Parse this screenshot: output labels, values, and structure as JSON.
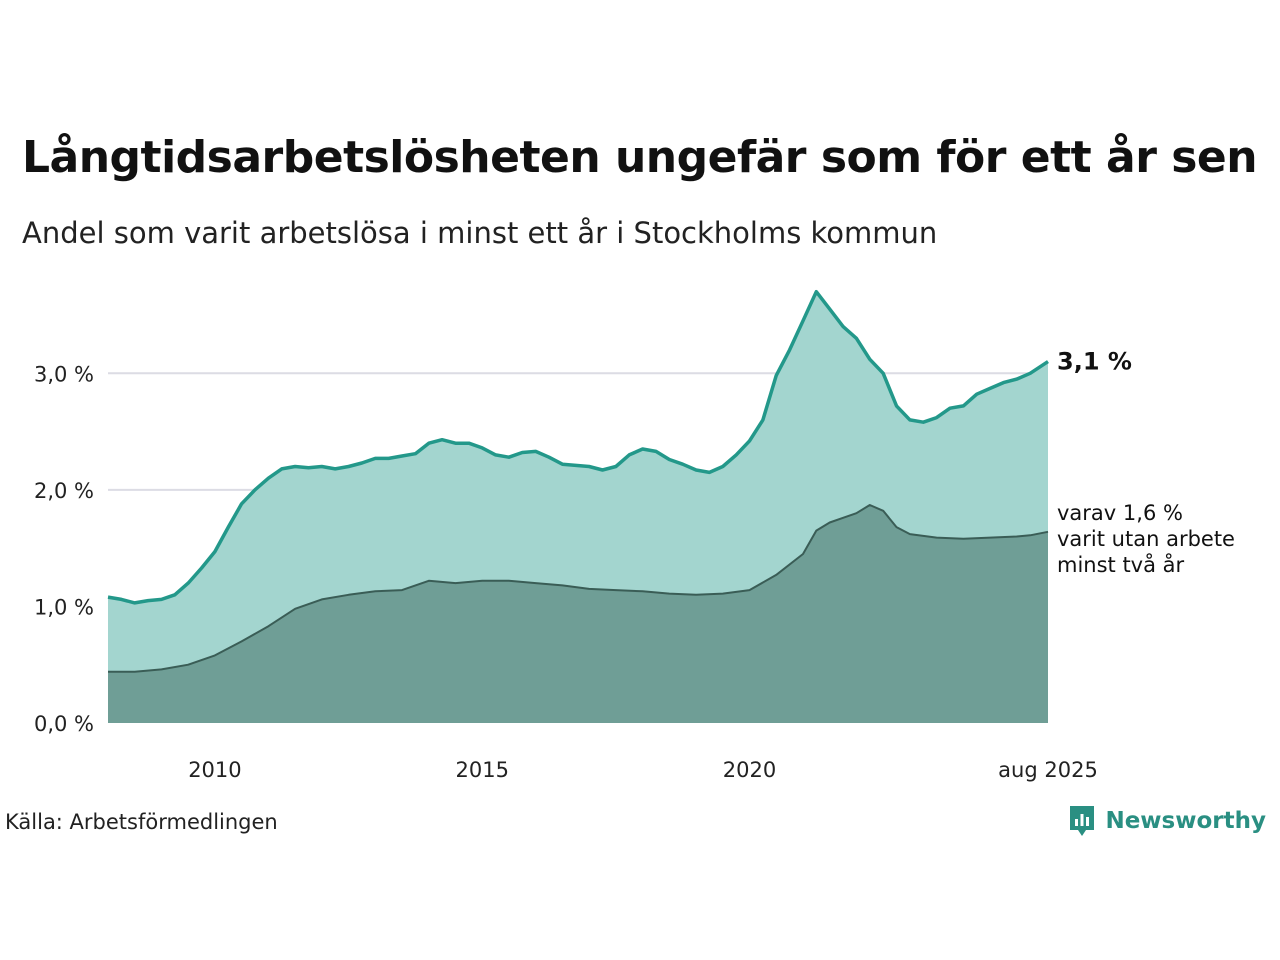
{
  "header": {
    "title": "Långtidsarbetslösheten ungefär som för ett år sen",
    "subtitle": "Andel som varit arbetslösa i minst ett år i Stockholms kommun"
  },
  "footer": {
    "source": "Källa: Arbetsförmedlingen",
    "brand": "Newsworthy"
  },
  "colors": {
    "total_line": "#23988a",
    "total_area": "#a3d5cf",
    "sub_line": "#3a5d56",
    "sub_area": "#6f9e96",
    "grid": "#dcdce4",
    "brand": "#2a8f82"
  },
  "chart_data": {
    "type": "area",
    "title": "",
    "xlabel": "",
    "ylabel": "",
    "xlim": [
      "2008-01",
      "2025-08"
    ],
    "ylim": [
      0,
      3.8
    ],
    "y_ticks": [
      0,
      1,
      2,
      3
    ],
    "y_tick_labels": [
      "0,0 %",
      "1,0 %",
      "2,0 %",
      "3,0 %"
    ],
    "x_ticks": [
      "2010-01",
      "2015-01",
      "2020-01",
      "2025-08"
    ],
    "x_tick_labels": [
      "2010",
      "2015",
      "2020",
      "aug 2025"
    ],
    "grid": true,
    "legend": "none",
    "series": [
      {
        "id": "total",
        "x": [
          "2008-01",
          "2008-04",
          "2008-07",
          "2008-10",
          "2009-01",
          "2009-04",
          "2009-07",
          "2009-10",
          "2010-01",
          "2010-04",
          "2010-07",
          "2010-10",
          "2011-01",
          "2011-04",
          "2011-07",
          "2011-10",
          "2012-01",
          "2012-04",
          "2012-07",
          "2012-10",
          "2013-01",
          "2013-04",
          "2013-07",
          "2013-10",
          "2014-01",
          "2014-04",
          "2014-07",
          "2014-10",
          "2015-01",
          "2015-04",
          "2015-07",
          "2015-10",
          "2016-01",
          "2016-04",
          "2016-07",
          "2016-10",
          "2017-01",
          "2017-04",
          "2017-07",
          "2017-10",
          "2018-01",
          "2018-04",
          "2018-07",
          "2018-10",
          "2019-01",
          "2019-04",
          "2019-07",
          "2019-10",
          "2020-01",
          "2020-04",
          "2020-07",
          "2020-10",
          "2021-01",
          "2021-04",
          "2021-07",
          "2021-10",
          "2022-01",
          "2022-04",
          "2022-07",
          "2022-10",
          "2023-01",
          "2023-04",
          "2023-07",
          "2023-10",
          "2024-01",
          "2024-04",
          "2024-07",
          "2024-10",
          "2025-01",
          "2025-04",
          "2025-08"
        ],
        "values": [
          1.08,
          1.06,
          1.03,
          1.05,
          1.06,
          1.1,
          1.2,
          1.33,
          1.47,
          1.68,
          1.88,
          2.0,
          2.1,
          2.18,
          2.2,
          2.19,
          2.2,
          2.18,
          2.2,
          2.23,
          2.27,
          2.27,
          2.29,
          2.31,
          2.4,
          2.43,
          2.4,
          2.4,
          2.36,
          2.3,
          2.28,
          2.32,
          2.33,
          2.28,
          2.22,
          2.21,
          2.2,
          2.17,
          2.2,
          2.3,
          2.35,
          2.33,
          2.26,
          2.22,
          2.17,
          2.15,
          2.2,
          2.3,
          2.42,
          2.6,
          2.98,
          3.2,
          3.45,
          3.7,
          3.55,
          3.4,
          3.3,
          3.12,
          3.0,
          2.72,
          2.6,
          2.58,
          2.62,
          2.7,
          2.72,
          2.82,
          2.87,
          2.92,
          2.95,
          3.0,
          3.1
        ],
        "end_label": "3,1 %"
      },
      {
        "id": "sub",
        "x": [
          "2008-01",
          "2008-07",
          "2009-01",
          "2009-07",
          "2010-01",
          "2010-07",
          "2011-01",
          "2011-07",
          "2012-01",
          "2012-07",
          "2013-01",
          "2013-07",
          "2014-01",
          "2014-07",
          "2015-01",
          "2015-07",
          "2016-01",
          "2016-07",
          "2017-01",
          "2017-07",
          "2018-01",
          "2018-07",
          "2019-01",
          "2019-07",
          "2020-01",
          "2020-07",
          "2021-01",
          "2021-04",
          "2021-07",
          "2021-10",
          "2022-01",
          "2022-04",
          "2022-07",
          "2022-10",
          "2023-01",
          "2023-07",
          "2024-01",
          "2024-07",
          "2025-01",
          "2025-04",
          "2025-08"
        ],
        "values": [
          0.44,
          0.44,
          0.46,
          0.5,
          0.58,
          0.7,
          0.83,
          0.98,
          1.06,
          1.1,
          1.13,
          1.14,
          1.22,
          1.2,
          1.22,
          1.22,
          1.2,
          1.18,
          1.15,
          1.14,
          1.13,
          1.11,
          1.1,
          1.11,
          1.14,
          1.27,
          1.45,
          1.65,
          1.72,
          1.76,
          1.8,
          1.87,
          1.82,
          1.68,
          1.62,
          1.59,
          1.58,
          1.59,
          1.6,
          1.61,
          1.64
        ],
        "end_label_lines": [
          "varav 1,6 %",
          "varit utan arbete",
          "minst två år"
        ]
      }
    ]
  }
}
